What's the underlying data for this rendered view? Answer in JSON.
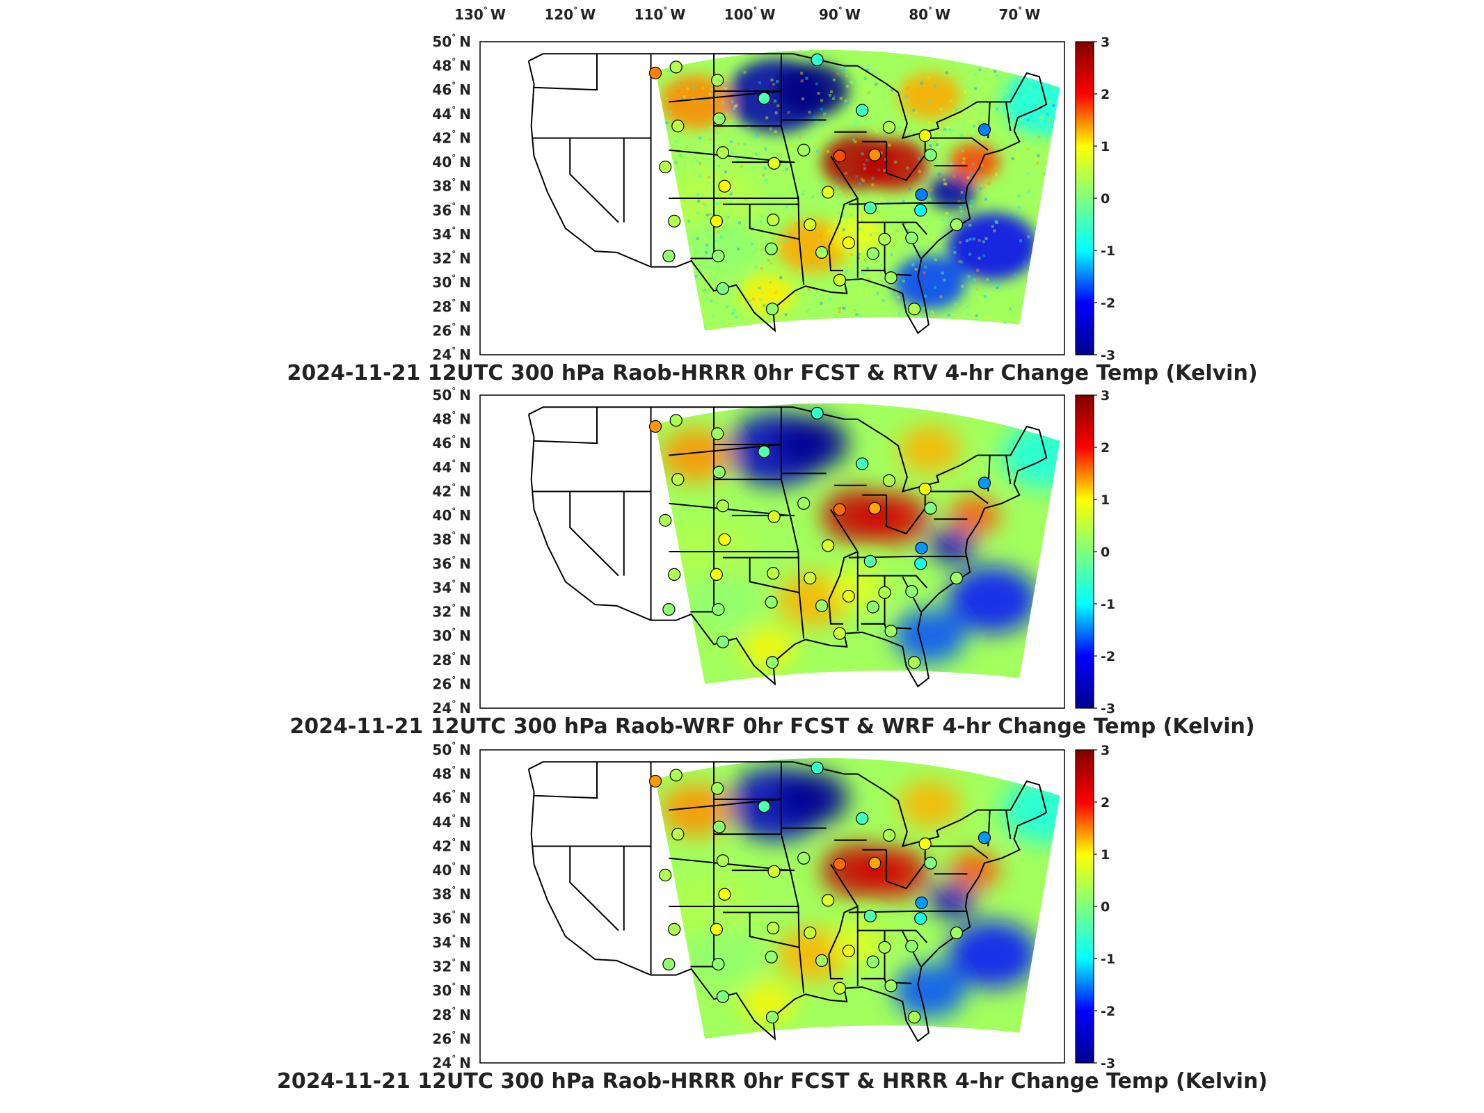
{
  "longitude_labels": [
    {
      "deg": "130",
      "hem": "W"
    },
    {
      "deg": "120",
      "hem": "W"
    },
    {
      "deg": "110",
      "hem": "W"
    },
    {
      "deg": "100",
      "hem": "W"
    },
    {
      "deg": "90",
      "hem": "W"
    },
    {
      "deg": "80",
      "hem": "W"
    },
    {
      "deg": "70",
      "hem": "W"
    }
  ],
  "latitude_labels": [
    {
      "deg": "50",
      "hem": "N"
    },
    {
      "deg": "48",
      "hem": "N"
    },
    {
      "deg": "46",
      "hem": "N"
    },
    {
      "deg": "44",
      "hem": "N"
    },
    {
      "deg": "42",
      "hem": "N"
    },
    {
      "deg": "40",
      "hem": "N"
    },
    {
      "deg": "38",
      "hem": "N"
    },
    {
      "deg": "36",
      "hem": "N"
    },
    {
      "deg": "34",
      "hem": "N"
    },
    {
      "deg": "32",
      "hem": "N"
    },
    {
      "deg": "30",
      "hem": "N"
    },
    {
      "deg": "28",
      "hem": "N"
    },
    {
      "deg": "26",
      "hem": "N"
    },
    {
      "deg": "24",
      "hem": "N"
    }
  ],
  "colorbar": {
    "ticks": [
      "3",
      "2",
      "1",
      "0",
      "-1",
      "-2",
      "-3"
    ],
    "range": [
      -3,
      3
    ],
    "colormap": "jet",
    "colors": [
      "#00008f",
      "#0000ff",
      "#00ffff",
      "#7fff7f",
      "#ffff00",
      "#ff0000",
      "#800000"
    ]
  },
  "panels": [
    {
      "id": "rtv",
      "title": "2024-11-21 12UTC 300 hPa Raob-HRRR 0hr FCST & RTV 4-hr Change Temp (Kelvin)"
    },
    {
      "id": "wrf",
      "title": "2024-11-21 12UTC 300 hPa Raob-WRF 0hr FCST & WRF 4-hr Change Temp (Kelvin)"
    },
    {
      "id": "hrrr",
      "title": "2024-11-21 12UTC 300 hPa Raob-HRRR 0hr FCST & HRRR 4-hr Change Temp (Kelvin)"
    }
  ],
  "map_extent": {
    "lon": [
      -130,
      -65
    ],
    "lat": [
      24,
      50
    ]
  },
  "station_markers": [
    {
      "lon": -110.5,
      "lat": 47.4,
      "value": 1.5
    },
    {
      "lon": -108.2,
      "lat": 47.9,
      "value": 0.3
    },
    {
      "lon": -103.6,
      "lat": 46.8,
      "value": 0.2
    },
    {
      "lon": -92.5,
      "lat": 48.5,
      "value": -0.5
    },
    {
      "lon": -108.0,
      "lat": 43.0,
      "value": 0.4
    },
    {
      "lon": -103.4,
      "lat": 43.6,
      "value": 0.1
    },
    {
      "lon": -98.4,
      "lat": 45.3,
      "value": -0.3
    },
    {
      "lon": -87.5,
      "lat": 44.3,
      "value": -0.4
    },
    {
      "lon": -84.5,
      "lat": 42.9,
      "value": 0.3
    },
    {
      "lon": -80.5,
      "lat": 42.2,
      "value": 0.8
    },
    {
      "lon": -73.9,
      "lat": 42.7,
      "value": -1.5
    },
    {
      "lon": -109.4,
      "lat": 39.6,
      "value": 0.3
    },
    {
      "lon": -103.0,
      "lat": 40.8,
      "value": 0.3
    },
    {
      "lon": -97.3,
      "lat": 39.9,
      "value": 0.6
    },
    {
      "lon": -94.0,
      "lat": 41.0,
      "value": 0.2
    },
    {
      "lon": -90.0,
      "lat": 40.5,
      "value": 1.8
    },
    {
      "lon": -86.1,
      "lat": 40.6,
      "value": 1.4
    },
    {
      "lon": -79.9,
      "lat": 40.6,
      "value": 0.0
    },
    {
      "lon": -102.8,
      "lat": 38.0,
      "value": 0.8
    },
    {
      "lon": -91.3,
      "lat": 37.5,
      "value": 0.6
    },
    {
      "lon": -80.9,
      "lat": 37.3,
      "value": -1.5
    },
    {
      "lon": -86.6,
      "lat": 36.2,
      "value": -0.3
    },
    {
      "lon": -81.0,
      "lat": 36.0,
      "value": -0.7
    },
    {
      "lon": -108.4,
      "lat": 35.1,
      "value": 0.3
    },
    {
      "lon": -103.7,
      "lat": 35.1,
      "value": 0.8
    },
    {
      "lon": -97.4,
      "lat": 35.2,
      "value": 0.4
    },
    {
      "lon": -93.3,
      "lat": 34.8,
      "value": 0.5
    },
    {
      "lon": -89.0,
      "lat": 33.3,
      "value": 0.7
    },
    {
      "lon": -85.0,
      "lat": 33.6,
      "value": 0.3
    },
    {
      "lon": -82.0,
      "lat": 33.7,
      "value": 0.1
    },
    {
      "lon": -77.0,
      "lat": 34.8,
      "value": 0.2
    },
    {
      "lon": -109.0,
      "lat": 32.2,
      "value": 0.1
    },
    {
      "lon": -103.5,
      "lat": 32.2,
      "value": 0.1
    },
    {
      "lon": -97.6,
      "lat": 32.8,
      "value": 0.1
    },
    {
      "lon": -92.0,
      "lat": 32.5,
      "value": 0.2
    },
    {
      "lon": -86.3,
      "lat": 32.4,
      "value": 0.1
    },
    {
      "lon": -103.0,
      "lat": 29.5,
      "value": 0.0
    },
    {
      "lon": -97.5,
      "lat": 27.8,
      "value": 0.1
    },
    {
      "lon": -90.0,
      "lat": 30.2,
      "value": 0.5
    },
    {
      "lon": -84.3,
      "lat": 30.4,
      "value": 0.2
    },
    {
      "lon": -81.7,
      "lat": 27.8,
      "value": 0.3
    }
  ]
}
